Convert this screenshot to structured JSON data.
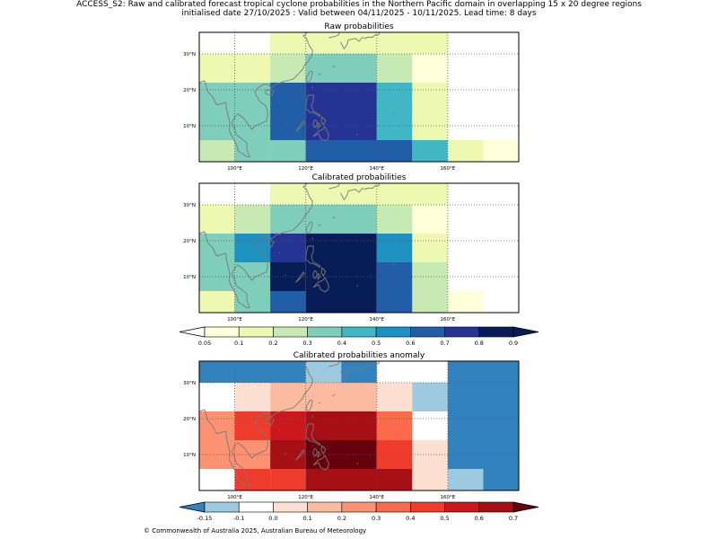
{
  "title": {
    "line1": "ACCESS_S2: Raw and calibrated forecast tropical cyclone probabilities in the Northern Pacific domain in overlapping 15 x 20 degree regions",
    "line2": "initialised date 27/10/2025 :  Valid between 04/11/2025 - 10/11/2025. Lead time: 8 days"
  },
  "footer": "© Commonwealth of Australia 2025, Australian Bureau of Meteorology",
  "colors": {
    "land_outline": "#7a7a7a",
    "grid": "#555555",
    "prob_cmap": [
      "#ffffd9",
      "#edf8b1",
      "#c7e9b4",
      "#7fcdbb",
      "#41b6c4",
      "#1d91c0",
      "#225ea8",
      "#253494",
      "#081d58",
      "#000b4d"
    ],
    "prob_under": "#ffffff",
    "prob_over": "#081d58",
    "anom_cmap": [
      "#9ecae1",
      "#ffffff",
      "#fee0d2",
      "#fcbba1",
      "#fc9272",
      "#fb6a4a",
      "#ef3b2c",
      "#cb181d",
      "#a50f15"
    ],
    "anom_under": "#3182bd",
    "anom_over": "#67000d"
  },
  "chart_data": [
    {
      "name": "raw",
      "type": "heatmap",
      "title": "Raw probabilities",
      "xlim": [
        90,
        180
      ],
      "ylim": [
        0,
        36
      ],
      "xticks": [
        100,
        120,
        140,
        160
      ],
      "yticks": [
        10,
        20,
        30
      ],
      "xtick_labels": [
        "100°E",
        "120°E",
        "140°E",
        "160°E"
      ],
      "ytick_labels": [
        "10°N",
        "20°N",
        "30°N"
      ],
      "cells": [
        {
          "lon": [
            90,
            100
          ],
          "lat": [
            0,
            6
          ],
          "value": 0.25
        },
        {
          "lon": [
            100,
            110
          ],
          "lat": [
            0,
            6
          ],
          "value": 0.35
        },
        {
          "lon": [
            110,
            120
          ],
          "lat": [
            0,
            6
          ],
          "value": 0.35
        },
        {
          "lon": [
            120,
            150
          ],
          "lat": [
            0,
            6
          ],
          "value": 0.65
        },
        {
          "lon": [
            150,
            160
          ],
          "lat": [
            0,
            6
          ],
          "value": 0.45
        },
        {
          "lon": [
            160,
            170
          ],
          "lat": [
            0,
            6
          ],
          "value": 0.15
        },
        {
          "lon": [
            170,
            180
          ],
          "lat": [
            0,
            6
          ],
          "value": 0.07
        },
        {
          "lon": [
            90,
            110
          ],
          "lat": [
            6,
            22
          ],
          "value": 0.35
        },
        {
          "lon": [
            110,
            120
          ],
          "lat": [
            6,
            22
          ],
          "value": 0.65
        },
        {
          "lon": [
            120,
            140
          ],
          "lat": [
            6,
            22
          ],
          "value": 0.75
        },
        {
          "lon": [
            140,
            150
          ],
          "lat": [
            6,
            22
          ],
          "value": 0.45
        },
        {
          "lon": [
            150,
            160
          ],
          "lat": [
            6,
            22
          ],
          "value": 0.15
        },
        {
          "lon": [
            90,
            100
          ],
          "lat": [
            22,
            30
          ],
          "value": 0.15
        },
        {
          "lon": [
            100,
            110
          ],
          "lat": [
            22,
            30
          ],
          "value": 0.15
        },
        {
          "lon": [
            110,
            120
          ],
          "lat": [
            22,
            30
          ],
          "value": 0.25
        },
        {
          "lon": [
            120,
            140
          ],
          "lat": [
            22,
            30
          ],
          "value": 0.35
        },
        {
          "lon": [
            140,
            150
          ],
          "lat": [
            22,
            30
          ],
          "value": 0.25
        },
        {
          "lon": [
            150,
            160
          ],
          "lat": [
            22,
            30
          ],
          "value": 0.07
        },
        {
          "lon": [
            110,
            160
          ],
          "lat": [
            30,
            36
          ],
          "value": 0.15
        }
      ]
    },
    {
      "name": "calibrated",
      "type": "heatmap",
      "title": "Calibrated probabilities",
      "xlim": [
        90,
        180
      ],
      "ylim": [
        0,
        36
      ],
      "xticks": [
        100,
        120,
        140,
        160
      ],
      "yticks": [
        10,
        20,
        30
      ],
      "xtick_labels": [
        "100°E",
        "120°E",
        "140°E",
        "160°E"
      ],
      "ytick_labels": [
        "10°N",
        "20°N",
        "30°N"
      ],
      "cells": [
        {
          "lon": [
            90,
            100
          ],
          "lat": [
            0,
            6
          ],
          "value": 0.15
        },
        {
          "lon": [
            100,
            110
          ],
          "lat": [
            0,
            6
          ],
          "value": 0.35
        },
        {
          "lon": [
            110,
            120
          ],
          "lat": [
            0,
            6
          ],
          "value": 0.65
        },
        {
          "lon": [
            120,
            140
          ],
          "lat": [
            0,
            6
          ],
          "value": 0.85
        },
        {
          "lon": [
            140,
            150
          ],
          "lat": [
            0,
            6
          ],
          "value": 0.65
        },
        {
          "lon": [
            150,
            160
          ],
          "lat": [
            0,
            6
          ],
          "value": 0.25
        },
        {
          "lon": [
            160,
            170
          ],
          "lat": [
            0,
            6
          ],
          "value": 0.07
        },
        {
          "lon": [
            90,
            100
          ],
          "lat": [
            6,
            14
          ],
          "value": 0.35
        },
        {
          "lon": [
            100,
            110
          ],
          "lat": [
            6,
            14
          ],
          "value": 0.35
        },
        {
          "lon": [
            110,
            120
          ],
          "lat": [
            6,
            14
          ],
          "value": 0.85
        },
        {
          "lon": [
            120,
            140
          ],
          "lat": [
            6,
            14
          ],
          "value": 0.95
        },
        {
          "lon": [
            140,
            150
          ],
          "lat": [
            6,
            14
          ],
          "value": 0.65
        },
        {
          "lon": [
            150,
            160
          ],
          "lat": [
            6,
            14
          ],
          "value": 0.25
        },
        {
          "lon": [
            90,
            100
          ],
          "lat": [
            14,
            22
          ],
          "value": 0.35
        },
        {
          "lon": [
            100,
            110
          ],
          "lat": [
            14,
            22
          ],
          "value": 0.55
        },
        {
          "lon": [
            110,
            120
          ],
          "lat": [
            14,
            22
          ],
          "value": 0.75
        },
        {
          "lon": [
            120,
            140
          ],
          "lat": [
            14,
            22
          ],
          "value": 0.85
        },
        {
          "lon": [
            140,
            150
          ],
          "lat": [
            14,
            22
          ],
          "value": 0.55
        },
        {
          "lon": [
            150,
            160
          ],
          "lat": [
            14,
            22
          ],
          "value": 0.15
        },
        {
          "lon": [
            90,
            100
          ],
          "lat": [
            22,
            30
          ],
          "value": 0.15
        },
        {
          "lon": [
            100,
            110
          ],
          "lat": [
            22,
            30
          ],
          "value": 0.25
        },
        {
          "lon": [
            110,
            140
          ],
          "lat": [
            22,
            30
          ],
          "value": 0.35
        },
        {
          "lon": [
            140,
            150
          ],
          "lat": [
            22,
            30
          ],
          "value": 0.25
        },
        {
          "lon": [
            150,
            160
          ],
          "lat": [
            22,
            30
          ],
          "value": 0.07
        },
        {
          "lon": [
            110,
            160
          ],
          "lat": [
            30,
            36
          ],
          "value": 0.15
        }
      ]
    },
    {
      "name": "anomaly",
      "type": "heatmap",
      "title": "Calibrated probabilities anomaly",
      "xlim": [
        90,
        180
      ],
      "ylim": [
        0,
        36
      ],
      "xticks": [
        100,
        120,
        140,
        160
      ],
      "yticks": [
        10,
        20,
        30
      ],
      "xtick_labels": [
        "100°E",
        "120°E",
        "140°E",
        "160°E"
      ],
      "ytick_labels": [
        "10°N",
        "20°N",
        "30°N"
      ],
      "cells": [
        {
          "lon": [
            90,
            100
          ],
          "lat": [
            0,
            6
          ],
          "value": -0.05
        },
        {
          "lon": [
            100,
            110
          ],
          "lat": [
            0,
            6
          ],
          "value": 0.45
        },
        {
          "lon": [
            110,
            120
          ],
          "lat": [
            0,
            6
          ],
          "value": 0.45
        },
        {
          "lon": [
            120,
            150
          ],
          "lat": [
            0,
            6
          ],
          "value": 0.65
        },
        {
          "lon": [
            150,
            160
          ],
          "lat": [
            0,
            6
          ],
          "value": 0.05
        },
        {
          "lon": [
            160,
            170
          ],
          "lat": [
            0,
            6
          ],
          "value": -0.15
        },
        {
          "lon": [
            170,
            180
          ],
          "lat": [
            0,
            6
          ],
          "value": -0.2
        },
        {
          "lon": [
            90,
            100
          ],
          "lat": [
            6,
            14
          ],
          "value": 0.25
        },
        {
          "lon": [
            100,
            110
          ],
          "lat": [
            6,
            14
          ],
          "value": 0.25
        },
        {
          "lon": [
            110,
            120
          ],
          "lat": [
            6,
            14
          ],
          "value": 0.65
        },
        {
          "lon": [
            120,
            140
          ],
          "lat": [
            6,
            14
          ],
          "value": 0.75
        },
        {
          "lon": [
            140,
            150
          ],
          "lat": [
            6,
            14
          ],
          "value": 0.45
        },
        {
          "lon": [
            150,
            160
          ],
          "lat": [
            6,
            14
          ],
          "value": 0.05
        },
        {
          "lon": [
            160,
            180
          ],
          "lat": [
            6,
            14
          ],
          "value": -0.2
        },
        {
          "lon": [
            90,
            100
          ],
          "lat": [
            14,
            22
          ],
          "value": 0.25
        },
        {
          "lon": [
            100,
            110
          ],
          "lat": [
            14,
            22
          ],
          "value": 0.45
        },
        {
          "lon": [
            110,
            120
          ],
          "lat": [
            14,
            22
          ],
          "value": 0.55
        },
        {
          "lon": [
            120,
            140
          ],
          "lat": [
            14,
            22
          ],
          "value": 0.65
        },
        {
          "lon": [
            140,
            150
          ],
          "lat": [
            14,
            22
          ],
          "value": 0.35
        },
        {
          "lon": [
            150,
            160
          ],
          "lat": [
            14,
            22
          ],
          "value": -0.05
        },
        {
          "lon": [
            160,
            180
          ],
          "lat": [
            14,
            22
          ],
          "value": -0.2
        },
        {
          "lon": [
            90,
            100
          ],
          "lat": [
            22,
            30
          ],
          "value": -0.05
        },
        {
          "lon": [
            100,
            110
          ],
          "lat": [
            22,
            30
          ],
          "value": 0.05
        },
        {
          "lon": [
            110,
            140
          ],
          "lat": [
            22,
            30
          ],
          "value": 0.15
        },
        {
          "lon": [
            140,
            150
          ],
          "lat": [
            22,
            30
          ],
          "value": 0.05
        },
        {
          "lon": [
            150,
            160
          ],
          "lat": [
            22,
            30
          ],
          "value": -0.15
        },
        {
          "lon": [
            160,
            180
          ],
          "lat": [
            22,
            30
          ],
          "value": -0.2
        },
        {
          "lon": [
            90,
            120
          ],
          "lat": [
            30,
            36
          ],
          "value": -0.2
        },
        {
          "lon": [
            120,
            130
          ],
          "lat": [
            30,
            36
          ],
          "value": -0.15
        },
        {
          "lon": [
            130,
            140
          ],
          "lat": [
            30,
            36
          ],
          "value": -0.2
        },
        {
          "lon": [
            160,
            180
          ],
          "lat": [
            30,
            36
          ],
          "value": -0.2
        }
      ]
    }
  ],
  "colorbars": [
    {
      "name": "probability",
      "levels": [
        0.05,
        0.1,
        0.2,
        0.3,
        0.4,
        0.5,
        0.6,
        0.7,
        0.8,
        0.9
      ],
      "labels": [
        "0.05",
        "0.1",
        "0.2",
        "0.3",
        "0.4",
        "0.5",
        "0.6",
        "0.7",
        "0.8",
        "0.9"
      ]
    },
    {
      "name": "anomaly",
      "levels": [
        -0.15,
        -0.1,
        0.0,
        0.1,
        0.2,
        0.3,
        0.4,
        0.5,
        0.6,
        0.7
      ],
      "labels": [
        "-0.15",
        "-0.1",
        "0.0",
        "0.1",
        "0.2",
        "0.3",
        "0.4",
        "0.5",
        "0.6",
        "0.7"
      ]
    }
  ]
}
